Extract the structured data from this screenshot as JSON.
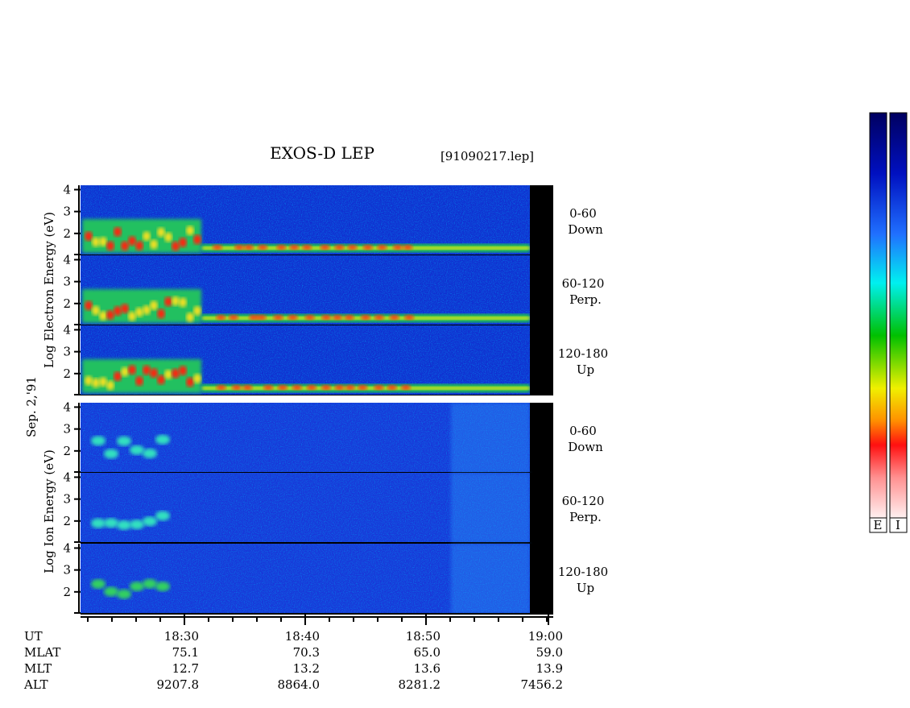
{
  "chart_data": {
    "type": "spectrogram",
    "title": "EXOS-D LEP",
    "file": "[91090217.lep]",
    "date": "Sep. 2,'91",
    "ylabels": [
      "Log Electron Energy (eV)",
      "Log Ion Energy (eV)"
    ],
    "panels": [
      {
        "species": "Electron",
        "angle": "0-60",
        "direction": "Down",
        "ylim": [
          1,
          4.2
        ],
        "yticks": [
          2,
          3,
          4
        ]
      },
      {
        "species": "Electron",
        "angle": "60-120",
        "direction": "Perp.",
        "ylim": [
          1,
          4.2
        ],
        "yticks": [
          2,
          3,
          4
        ]
      },
      {
        "species": "Electron",
        "angle": "120-180",
        "direction": "Up",
        "ylim": [
          1,
          4.2
        ],
        "yticks": [
          2,
          3,
          4
        ]
      },
      {
        "species": "Ion",
        "angle": "0-60",
        "direction": "Down",
        "ylim": [
          1,
          4.2
        ],
        "yticks": [
          2,
          3,
          4
        ]
      },
      {
        "species": "Ion",
        "angle": "60-120",
        "direction": "Perp.",
        "ylim": [
          1,
          4.2
        ],
        "yticks": [
          2,
          3,
          4
        ]
      },
      {
        "species": "Ion",
        "angle": "120-180",
        "direction": "Up",
        "ylim": [
          1,
          4.2
        ],
        "yticks": [
          2,
          3,
          4
        ]
      }
    ],
    "orbit_rows": [
      {
        "label": "UT",
        "values": [
          "18:30",
          "18:40",
          "18:50",
          "19:00"
        ]
      },
      {
        "label": "MLAT",
        "values": [
          "75.1",
          "70.3",
          "65.0",
          "59.0"
        ]
      },
      {
        "label": "MLT",
        "values": [
          "12.7",
          "13.2",
          "13.6",
          "13.9"
        ]
      },
      {
        "label": "ALT",
        "values": [
          "9207.8",
          "8864.0",
          "8281.2",
          "7456.2"
        ]
      }
    ],
    "colorbar_labels": [
      "E",
      "I"
    ]
  }
}
